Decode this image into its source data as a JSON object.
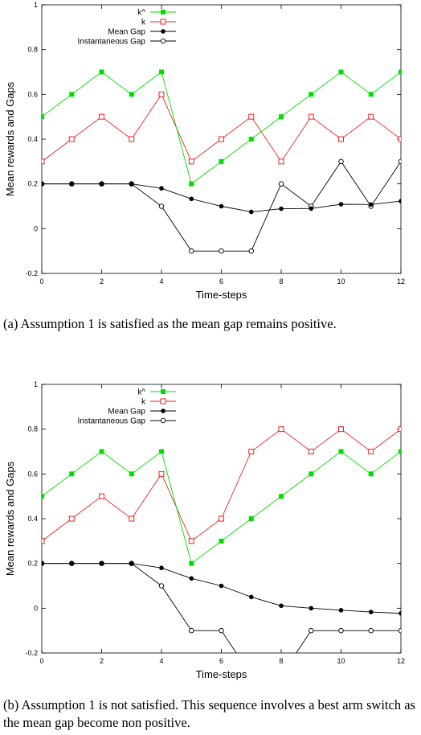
{
  "chart_data": [
    {
      "type": "line",
      "id": "a",
      "xlabel": "Time-steps",
      "ylabel": "Mean rewards and Gaps",
      "xlim": [
        0,
        12
      ],
      "ylim": [
        -0.2,
        1
      ],
      "xticks": [
        "0",
        "2",
        "4",
        "6",
        "8",
        "10",
        "12"
      ],
      "yticks": [
        "-0.2",
        "0",
        "0.2",
        "0.4",
        "0.6",
        "0.8",
        "1"
      ],
      "grid": false,
      "legend_position": "top-right",
      "x": [
        0,
        1,
        2,
        3,
        4,
        5,
        6,
        7,
        8,
        9,
        10,
        11,
        12
      ],
      "series": [
        {
          "name": "k^",
          "color": "#00dd00",
          "marker": "filled-square",
          "values": [
            0.5,
            0.6,
            0.7,
            0.6,
            0.7,
            0.2,
            0.3,
            0.4,
            0.5,
            0.6,
            0.7,
            0.6,
            0.7
          ]
        },
        {
          "name": "k",
          "color": "#ee2222",
          "marker": "open-square",
          "values": [
            0.3,
            0.4,
            0.5,
            0.4,
            0.6,
            0.3,
            0.4,
            0.5,
            0.3,
            0.5,
            0.4,
            0.5,
            0.4
          ]
        },
        {
          "name": "Mean Gap",
          "color": "#000000",
          "marker": "filled-circle",
          "values": [
            0.2,
            0.2,
            0.2,
            0.2,
            0.18,
            0.133,
            0.1,
            0.075,
            0.089,
            0.09,
            0.109,
            0.108,
            0.123
          ]
        },
        {
          "name": "Instantaneous Gap",
          "color": "#000000",
          "marker": "open-circle",
          "values": [
            0.2,
            0.2,
            0.2,
            0.2,
            0.1,
            -0.1,
            -0.1,
            -0.1,
            0.2,
            0.1,
            0.3,
            0.1,
            0.3
          ]
        }
      ]
    },
    {
      "type": "line",
      "id": "b",
      "xlabel": "Time-steps",
      "ylabel": "Mean rewards and Gaps",
      "xlim": [
        0,
        12
      ],
      "ylim": [
        -0.2,
        1
      ],
      "xticks": [
        "0",
        "2",
        "4",
        "6",
        "8",
        "10",
        "12"
      ],
      "yticks": [
        "-0.2",
        "0",
        "0.2",
        "0.4",
        "0.6",
        "0.8",
        "1"
      ],
      "grid": false,
      "legend_position": "top-right",
      "x": [
        0,
        1,
        2,
        3,
        4,
        5,
        6,
        7,
        8,
        9,
        10,
        11,
        12
      ],
      "series": [
        {
          "name": "k^",
          "color": "#00dd00",
          "marker": "filled-square",
          "values": [
            0.5,
            0.6,
            0.7,
            0.6,
            0.7,
            0.2,
            0.3,
            0.4,
            0.5,
            0.6,
            0.7,
            0.6,
            0.7
          ]
        },
        {
          "name": "k",
          "color": "#ee2222",
          "marker": "open-square",
          "values": [
            0.3,
            0.4,
            0.5,
            0.4,
            0.6,
            0.3,
            0.4,
            0.7,
            0.8,
            0.7,
            0.8,
            0.7,
            0.8
          ]
        },
        {
          "name": "Mean Gap",
          "color": "#000000",
          "marker": "filled-circle",
          "values": [
            0.2,
            0.2,
            0.2,
            0.2,
            0.18,
            0.133,
            0.1,
            0.05,
            0.011,
            0.0,
            -0.009,
            -0.017,
            -0.023
          ]
        },
        {
          "name": "Instantaneous Gap",
          "color": "#000000",
          "marker": "open-circle",
          "values": [
            0.2,
            0.2,
            0.2,
            0.2,
            0.1,
            -0.1,
            -0.1,
            -0.3,
            -0.3,
            -0.1,
            -0.1,
            -0.1,
            -0.1
          ]
        }
      ]
    }
  ],
  "captions": {
    "a": "(a)  Assumption 1 is satisfied as the mean gap remains positive.",
    "b": "(b)  Assumption 1 is not satisfied. This sequence involves a best arm switch as the mean gap become non positive."
  }
}
